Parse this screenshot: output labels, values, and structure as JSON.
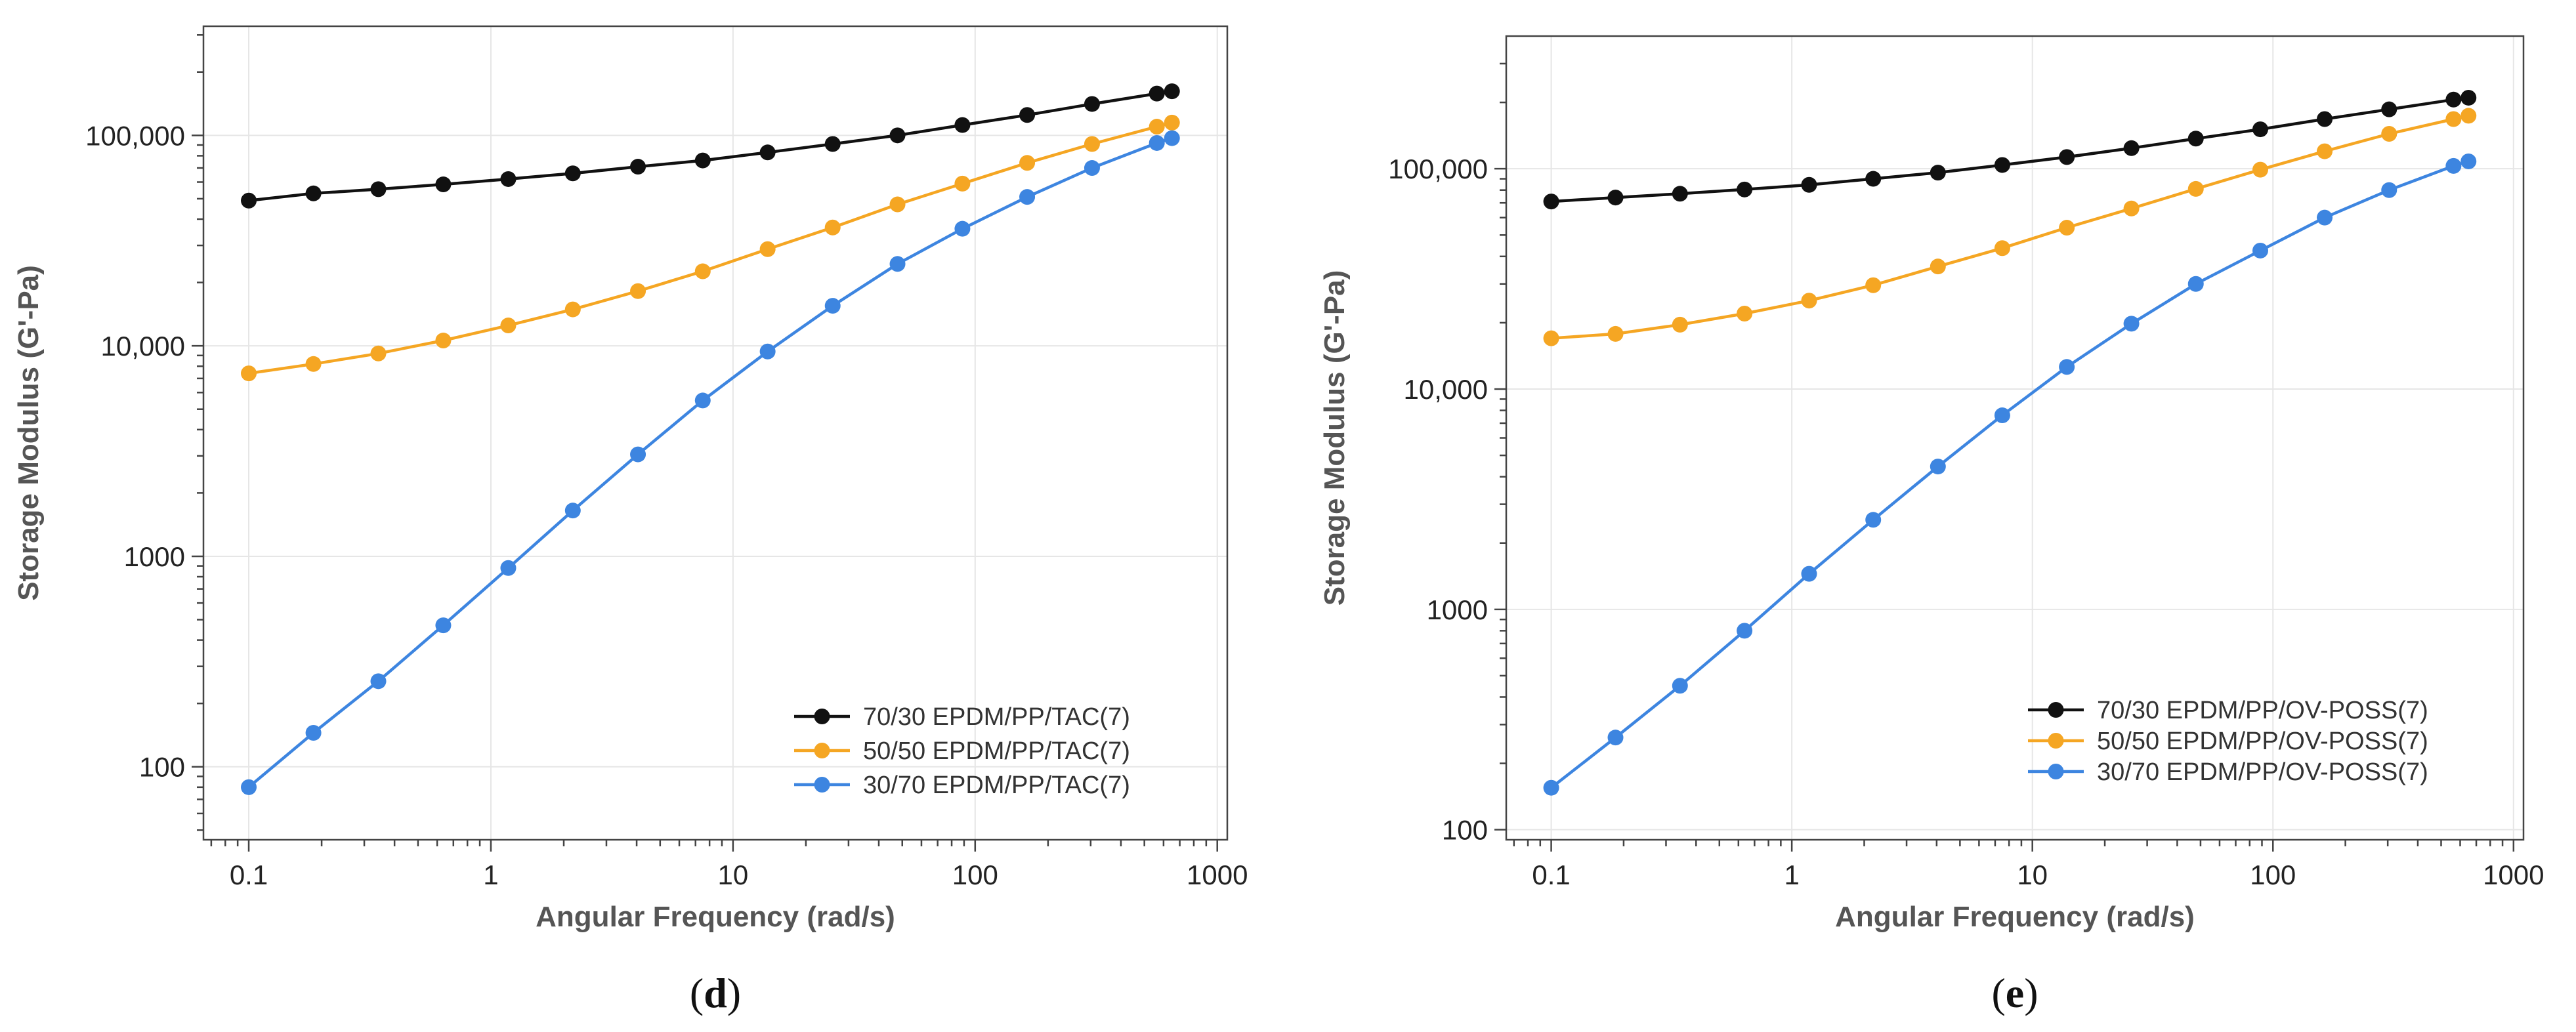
{
  "chart_data": [
    {
      "type": "line",
      "panel_label": "d",
      "xscale": "log",
      "yscale": "log",
      "xlabel": "Angular Frequency (rad/s)",
      "ylabel": "Storage Modulus (G'-Pa)",
      "xlim": [
        0.065,
        1100
      ],
      "ylim": [
        45,
        330000
      ],
      "xticks": [
        0.1,
        1,
        10,
        100,
        1000
      ],
      "xtick_labels": [
        "0.1",
        "1",
        "10",
        "100",
        "1000"
      ],
      "yticks": [
        100,
        1000,
        10000,
        100000
      ],
      "ytick_labels": [
        "100",
        "1000",
        "10,000",
        "100,000"
      ],
      "legend_position": "bottom-right",
      "x": [
        0.1,
        0.185,
        0.343,
        0.636,
        1.18,
        2.18,
        4.05,
        7.5,
        13.9,
        25.8,
        47.8,
        88.6,
        164,
        304,
        563,
        650
      ],
      "series": [
        {
          "name": "70/30 EPDM/PP/TAC(7)",
          "color": "#111111",
          "values": [
            49000,
            53000,
            55500,
            58500,
            62000,
            66000,
            71000,
            76000,
            83000,
            91000,
            100000,
            112000,
            125000,
            141000,
            158000,
            162000
          ]
        },
        {
          "name": "50/50 EPDM/PP/TAC(7)",
          "color": "#f5a623",
          "values": [
            7400,
            8200,
            9200,
            10600,
            12500,
            14900,
            18200,
            22600,
            28800,
            36500,
            47000,
            59000,
            74000,
            91000,
            110000,
            115000
          ]
        },
        {
          "name": "30/70 EPDM/PP/TAC(7)",
          "color": "#3d85e0",
          "values": [
            80,
            145,
            255,
            470,
            880,
            1650,
            3050,
            5500,
            9400,
            15500,
            24500,
            36000,
            51000,
            70000,
            92000,
            97000
          ]
        }
      ]
    },
    {
      "type": "line",
      "panel_label": "e",
      "xscale": "log",
      "yscale": "log",
      "xlabel": "Angular Frequency (rad/s)",
      "ylabel": "Storage Modulus (G'-Pa)",
      "xlim": [
        0.065,
        1100
      ],
      "ylim": [
        90,
        400000
      ],
      "xticks": [
        0.1,
        1,
        10,
        100,
        1000
      ],
      "xtick_labels": [
        "0.1",
        "1",
        "10",
        "100",
        "1000"
      ],
      "yticks": [
        100,
        1000,
        10000,
        100000
      ],
      "ytick_labels": [
        "100",
        "1000",
        "10,000",
        "100,000"
      ],
      "legend_position": "bottom-right",
      "x": [
        0.1,
        0.185,
        0.343,
        0.636,
        1.18,
        2.18,
        4.05,
        7.5,
        13.9,
        25.8,
        47.8,
        88.6,
        164,
        304,
        563,
        650
      ],
      "series": [
        {
          "name": "70/30 EPDM/PP/OV-POSS(7)",
          "color": "#111111",
          "values": [
            71000,
            74000,
            77000,
            80500,
            84500,
            90000,
            96000,
            104000,
            113000,
            124000,
            137000,
            151000,
            168000,
            186000,
            206000,
            210000
          ]
        },
        {
          "name": "50/50 EPDM/PP/OV-POSS(7)",
          "color": "#f5a623",
          "values": [
            17000,
            17800,
            19600,
            22000,
            25200,
            29600,
            36000,
            43600,
            54000,
            66000,
            81000,
            99000,
            120000,
            144000,
            168000,
            174000
          ]
        },
        {
          "name": "30/70 EPDM/PP/OV-POSS(7)",
          "color": "#3d85e0",
          "values": [
            155,
            262,
            450,
            800,
            1450,
            2550,
            4450,
            7600,
            12600,
            19800,
            30000,
            42500,
            60000,
            80000,
            103000,
            108000
          ]
        }
      ]
    }
  ]
}
